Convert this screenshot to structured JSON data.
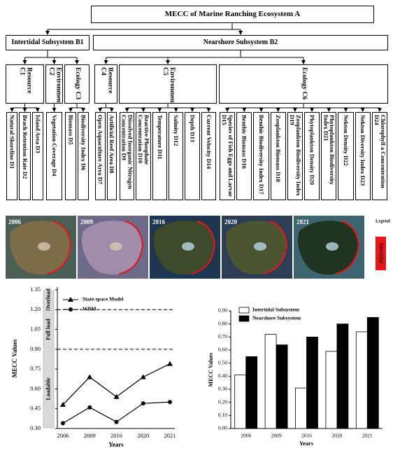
{
  "diagram": {
    "title": "MECC of Marine Ranching Ecosystem A",
    "subsystems": [
      {
        "label": "Intertidal Subsystem B1",
        "criteria": [
          {
            "label": "Resource C1",
            "indicators": [
              "Natural Shoreline D1",
              "Beach Retention Rate D2",
              "Island Area D3"
            ]
          },
          {
            "label": "Environment C2",
            "indicators": [
              "Vegetation Coverage D4"
            ]
          },
          {
            "label": "Ecology C3",
            "indicators": [
              "Biomass D5",
              "Biodiversity Index D6"
            ]
          }
        ]
      },
      {
        "label": "Nearshore Subsystem B2",
        "criteria": [
          {
            "label": "Resource C4",
            "indicators": [
              "Open Aquaculture Area D7",
              "Artificial Reef Area D8"
            ]
          },
          {
            "label": "Environment C5",
            "indicators": [
              "Dissolved Inorganic Nitrogen Concentration D9",
              "Reactive Phosphate Concentration D10",
              "Temperature D11",
              "Salinity D12",
              "Depth D13",
              "Current Velocity D14"
            ]
          },
          {
            "label": "Ecology C6",
            "indicators": [
              "Species of Fish Eggs and Larvae D15",
              "Benthic Biomass D16",
              "Benthic Biodiversity Index D17",
              "Zooplankton Biomass D18",
              "Zooplankton Biodiversity Index D19",
              "Phytoplankton Density D20",
              "Phytoplankton Biodiversity Index D21",
              "Nekton Density D22",
              "Nekton Diversity Index D23",
              "Chlorophyll a Concentration D24"
            ]
          }
        ]
      }
    ]
  },
  "images": {
    "years": [
      "2006",
      "2009",
      "2016",
      "2020",
      "2021"
    ],
    "legend_title": "Legend",
    "legend_item": "Intertidal",
    "legend_color": "#e8151b"
  },
  "chart_data": [
    {
      "type": "line",
      "xlabel": "Years",
      "ylabel": "MECC Values",
      "categories": [
        "2006",
        "2009",
        "2016",
        "2020",
        "2021"
      ],
      "series": [
        {
          "name": "State-space Model",
          "color": "#000000",
          "marker": "triangle",
          "values": [
            0.48,
            0.69,
            0.54,
            0.69,
            0.79
          ]
        },
        {
          "name": "WBM",
          "color": "#000000",
          "marker": "circle",
          "values": [
            0.34,
            0.46,
            0.35,
            0.49,
            0.5
          ]
        }
      ],
      "ylim": [
        0.3,
        1.35
      ],
      "yticks": [
        {
          "value": 0.3,
          "label": "0.30"
        },
        {
          "value": 0.45,
          "label": "0.45"
        },
        {
          "value": 0.6,
          "label": "0.60"
        },
        {
          "value": 0.75,
          "label": "0.75"
        },
        {
          "value": 0.9,
          "label": "0.90"
        },
        {
          "value": 1.05,
          "label": "1.05"
        },
        {
          "value": 1.2,
          "label": "1.20"
        },
        {
          "value": 1.35,
          "label": "1.35"
        }
      ],
      "reference_lines": [
        0.9,
        1.2
      ],
      "zones": [
        {
          "label": "Overload",
          "from": 1.2,
          "to": 1.35
        },
        {
          "label": "Full load",
          "from": 0.9,
          "to": 1.2
        },
        {
          "label": "Loadable",
          "from": 0.3,
          "to": 0.9
        }
      ]
    },
    {
      "type": "bar",
      "xlabel": "Years",
      "ylabel": "MECC Values",
      "categories": [
        "2006",
        "2009",
        "2016",
        "2020",
        "2021"
      ],
      "series": [
        {
          "name": "Intertidal Subsystem",
          "color": "#ffffff",
          "values": [
            0.41,
            0.72,
            0.31,
            0.59,
            0.74
          ]
        },
        {
          "name": "Nearshore Subsystem",
          "color": "#000000",
          "values": [
            0.55,
            0.64,
            0.7,
            0.8,
            0.85
          ]
        }
      ],
      "ylim": [
        0,
        0.9
      ],
      "yticks": [
        {
          "value": 0,
          "label": "0.00"
        },
        {
          "value": 0.1,
          "label": "0.10"
        },
        {
          "value": 0.2,
          "label": "0.20"
        },
        {
          "value": 0.3,
          "label": "0.30"
        },
        {
          "value": 0.4,
          "label": "0.40"
        },
        {
          "value": 0.5,
          "label": "0.50"
        },
        {
          "value": 0.6,
          "label": "0.60"
        },
        {
          "value": 0.7,
          "label": "0.70"
        },
        {
          "value": 0.8,
          "label": "0.80"
        },
        {
          "value": 0.9,
          "label": "0.90"
        }
      ]
    }
  ]
}
